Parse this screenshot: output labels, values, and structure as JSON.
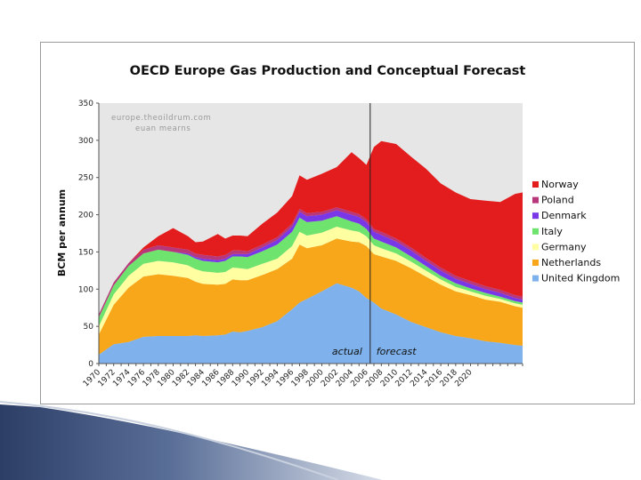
{
  "chart_data": {
    "type": "area",
    "title": "OECD Europe Gas Production and Conceptual Forecast",
    "ylabel": "BCM per annum",
    "xlabel": "",
    "ylim": [
      0,
      350
    ],
    "yticks": [
      0,
      50,
      100,
      150,
      200,
      250,
      300,
      350
    ],
    "xlim": [
      1970,
      2027
    ],
    "xtick_labels": [
      "1970",
      "1972",
      "1974",
      "1976",
      "1978",
      "1980",
      "1982",
      "1984",
      "1986",
      "1988",
      "1990",
      "1992",
      "1994",
      "1996",
      "1998",
      "2000",
      "2002",
      "2004",
      "2006",
      "2008",
      "2010",
      "2012",
      "2014",
      "2016",
      "2018",
      "2020"
    ],
    "watermark": [
      "europe.theoildrum.com",
      "euan mearns"
    ],
    "divider_year": 2006.5,
    "annotations": {
      "actual": "actual",
      "forecast": "forecast"
    },
    "legend_placement": "right",
    "grid": false,
    "stack_order": [
      "United Kingdom",
      "Netherlands",
      "Germany",
      "Italy",
      "Denmark",
      "Poland",
      "Norway"
    ],
    "legend_order": [
      "Norway",
      "Poland",
      "Denmark",
      "Italy",
      "Germany",
      "Netherlands",
      "United Kingdom"
    ],
    "x": [
      1970,
      1972,
      1974,
      1976,
      1978,
      1980,
      1982,
      1983,
      1984,
      1986,
      1987,
      1988,
      1989,
      1990,
      1992,
      1994,
      1996,
      1997,
      1998,
      2000,
      2002,
      2004,
      2005,
      2006,
      2007,
      2008,
      2010,
      2012,
      2014,
      2016,
      2018,
      2020,
      2022,
      2024,
      2026,
      2027
    ],
    "series": [
      {
        "name": "United Kingdom",
        "color": "#7fb2ec",
        "values": [
          12,
          26,
          29,
          36,
          37,
          37,
          37,
          38,
          37,
          38,
          39,
          43,
          42,
          44,
          49,
          57,
          73,
          82,
          87,
          97,
          108,
          102,
          97,
          88,
          82,
          74,
          66,
          56,
          49,
          42,
          37,
          34,
          30,
          28,
          25,
          24
        ]
      },
      {
        "name": "Netherlands",
        "color": "#f8a71a",
        "values": [
          27,
          53,
          73,
          81,
          83,
          81,
          78,
          72,
          70,
          68,
          68,
          70,
          70,
          68,
          70,
          70,
          68,
          78,
          68,
          62,
          60,
          62,
          66,
          70,
          65,
          70,
          72,
          72,
          68,
          64,
          60,
          58,
          56,
          55,
          52,
          51
        ]
      },
      {
        "name": "Germany",
        "color": "#ffffa2",
        "values": [
          11,
          14,
          16,
          17,
          18,
          18,
          17,
          17,
          17,
          16,
          16,
          16,
          16,
          15,
          15,
          14,
          17,
          17,
          17,
          17,
          16,
          15,
          14,
          13,
          12,
          11,
          10,
          9,
          8,
          7,
          6,
          5,
          5,
          4,
          4,
          4
        ]
      },
      {
        "name": "Italy",
        "color": "#6ee36e",
        "values": [
          12,
          12,
          13,
          14,
          15,
          14,
          14,
          14,
          14,
          14,
          15,
          15,
          16,
          16,
          17,
          19,
          19,
          19,
          18,
          16,
          14,
          12,
          11,
          10,
          9,
          9,
          8,
          7,
          6,
          5,
          5,
          4,
          4,
          3,
          3,
          3
        ]
      },
      {
        "name": "Denmark",
        "color": "#7a37e8",
        "values": [
          0,
          0,
          0,
          0,
          0,
          0,
          2,
          2,
          3,
          3,
          3,
          3,
          3,
          4,
          5,
          6,
          7,
          8,
          8,
          8,
          8,
          9,
          9,
          9,
          9,
          9,
          8,
          8,
          7,
          7,
          6,
          6,
          5,
          5,
          4,
          4
        ]
      },
      {
        "name": "Poland",
        "color": "#b8377a",
        "values": [
          4,
          4,
          4,
          5,
          6,
          6,
          5,
          5,
          5,
          5,
          5,
          5,
          5,
          4,
          4,
          4,
          4,
          4,
          4,
          4,
          4,
          4,
          4,
          4,
          4,
          4,
          4,
          4,
          4,
          4,
          4,
          4,
          4,
          4,
          4,
          4
        ]
      },
      {
        "name": "Norway",
        "color": "#e31d1d",
        "values": [
          0,
          0,
          0,
          3,
          12,
          26,
          18,
          15,
          18,
          30,
          22,
          20,
          20,
          20,
          28,
          33,
          37,
          45,
          45,
          51,
          54,
          80,
          75,
          73,
          110,
          122,
          127,
          122,
          120,
          113,
          112,
          110,
          115,
          118,
          136,
          140
        ]
      }
    ]
  }
}
